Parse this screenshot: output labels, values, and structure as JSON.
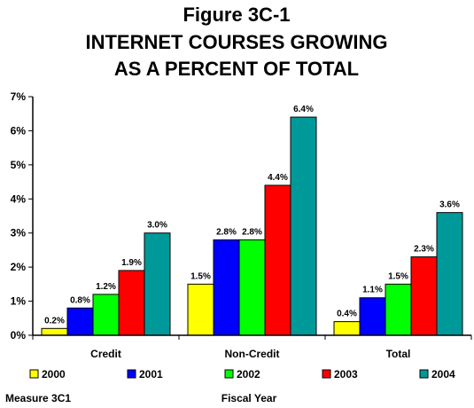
{
  "chart_data": {
    "type": "bar",
    "title_lines": [
      "Figure 3C-1",
      "INTERNET COURSES GROWING",
      "AS A PERCENT OF TOTAL"
    ],
    "categories": [
      "Credit",
      "Non-Credit",
      "Total"
    ],
    "series": [
      {
        "name": "2000",
        "color": "#ffff00",
        "values": [
          0.2,
          1.5,
          0.4
        ],
        "labels": [
          "0.2%",
          "1.5%",
          "0.4%"
        ]
      },
      {
        "name": "2001",
        "color": "#0000ff",
        "values": [
          0.8,
          2.8,
          1.1
        ],
        "labels": [
          "0.8%",
          "2.8%",
          "1.1%"
        ]
      },
      {
        "name": "2002",
        "color": "#00ff00",
        "values": [
          1.2,
          2.8,
          1.5
        ],
        "labels": [
          "1.2%",
          "2.8%",
          "1.5%"
        ]
      },
      {
        "name": "2003",
        "color": "#ff0000",
        "values": [
          1.9,
          4.4,
          2.3
        ],
        "labels": [
          "1.9%",
          "4.4%",
          "2.3%"
        ]
      },
      {
        "name": "2004",
        "color": "#009999",
        "values": [
          3.0,
          6.4,
          3.6
        ],
        "labels": [
          "3.0%",
          "6.4%",
          "3.6%"
        ]
      }
    ],
    "yticks": [
      "0%",
      "1%",
      "2%",
      "3%",
      "4%",
      "5%",
      "6%",
      "7%"
    ],
    "ylim": [
      0,
      7
    ],
    "xlabel": "Fiscal Year",
    "legend_position": "bottom",
    "grid": false
  },
  "footer": {
    "measure": "Measure 3C1"
  }
}
